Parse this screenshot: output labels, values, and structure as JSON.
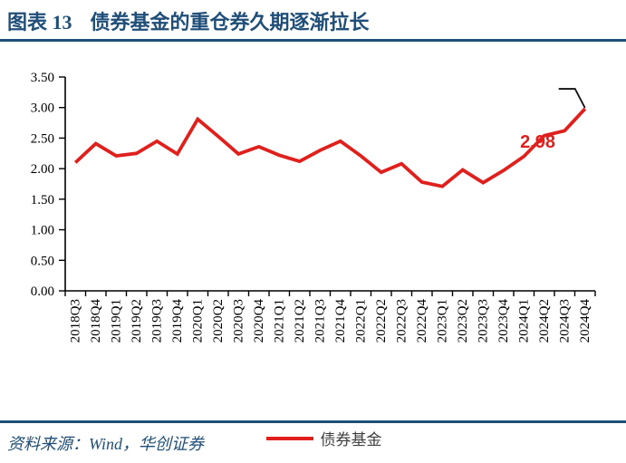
{
  "figure": {
    "label": "图表 13",
    "title": "债券基金的重仓券久期逐渐拉长"
  },
  "source": {
    "text": "资料来源：Wind，华创证券"
  },
  "colors": {
    "accent_navy": "#1F4E79",
    "series_red": "#E0201C",
    "axis_black": "#000000",
    "legend_text": "#3F3F3F"
  },
  "chart_data": {
    "type": "line",
    "title": "债券基金的重仓券久期逐渐拉长",
    "xlabel": "",
    "ylabel": "",
    "ylim": [
      0,
      3.5
    ],
    "ytick_step": 0.5,
    "grid": false,
    "legend_position": "bottom",
    "categories": [
      "2018Q3",
      "2018Q4",
      "2019Q1",
      "2019Q2",
      "2019Q3",
      "2019Q4",
      "2020Q1",
      "2020Q2",
      "2020Q3",
      "2020Q4",
      "2021Q1",
      "2021Q2",
      "2021Q3",
      "2021Q4",
      "2022Q1",
      "2022Q2",
      "2022Q3",
      "2022Q4",
      "2023Q1",
      "2023Q2",
      "2023Q3",
      "2023Q4",
      "2024Q1",
      "2024Q2",
      "2024Q3",
      "2024Q4"
    ],
    "series": [
      {
        "name": "债券基金",
        "color": "#E0201C",
        "values": [
          2.1,
          2.41,
          2.21,
          2.25,
          2.45,
          2.24,
          2.81,
          2.53,
          2.24,
          2.36,
          2.22,
          2.12,
          2.3,
          2.45,
          2.21,
          1.94,
          2.08,
          1.78,
          1.71,
          1.98,
          1.77,
          1.97,
          2.2,
          2.54,
          2.62,
          2.98
        ]
      }
    ],
    "annotation": {
      "label": "2.98",
      "category": "2024Q4",
      "value": 2.98
    }
  }
}
